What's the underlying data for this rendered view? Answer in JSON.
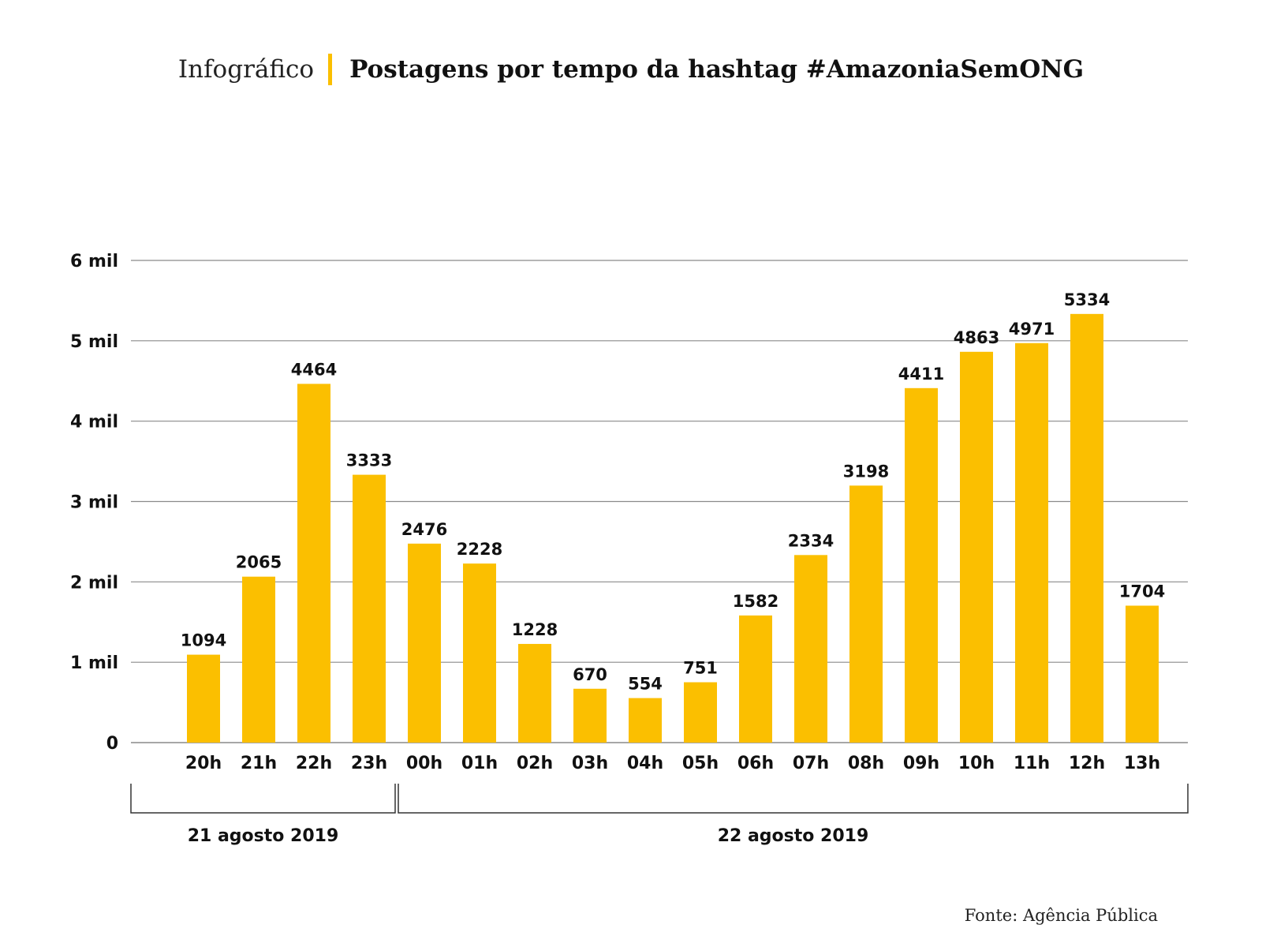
{
  "header": {
    "kicker": "Infográfico",
    "title": "Postagens por tempo da hashtag #AmazoniaSemONG"
  },
  "source": "Fonte: Agência Pública",
  "colors": {
    "bar": "#fbbf00",
    "grid": "#8a8a8a",
    "text": "#111111"
  },
  "chart_data": {
    "type": "bar",
    "title": "Postagens por tempo da hashtag #AmazoniaSemONG",
    "categories": [
      "20h",
      "21h",
      "22h",
      "23h",
      "00h",
      "01h",
      "02h",
      "03h",
      "04h",
      "05h",
      "06h",
      "07h",
      "08h",
      "09h",
      "10h",
      "11h",
      "12h",
      "13h"
    ],
    "values": [
      1094,
      2065,
      4464,
      3333,
      2476,
      2228,
      1228,
      670,
      554,
      751,
      1582,
      2334,
      3198,
      4411,
      4863,
      4971,
      5334,
      1704
    ],
    "value_labels": [
      "1094",
      "2065",
      "4464",
      "3333",
      "2476",
      "2228",
      "1228",
      "670",
      "554",
      "751",
      "1582",
      "2334",
      "3198",
      "4411",
      "4863",
      "4971",
      "5334",
      "1704"
    ],
    "yticks": [
      0,
      1000,
      2000,
      3000,
      4000,
      5000,
      6000
    ],
    "ytick_labels": [
      "0",
      "1 mil",
      "2 mil",
      "3 mil",
      "4 mil",
      "5 mil",
      "6 mil"
    ],
    "ylim": [
      0,
      6000
    ],
    "grid": true,
    "groups": [
      {
        "label": "21 agosto 2019",
        "start": 0,
        "end": 3
      },
      {
        "label": "22 agosto 2019",
        "start": 4,
        "end": 17
      }
    ]
  }
}
